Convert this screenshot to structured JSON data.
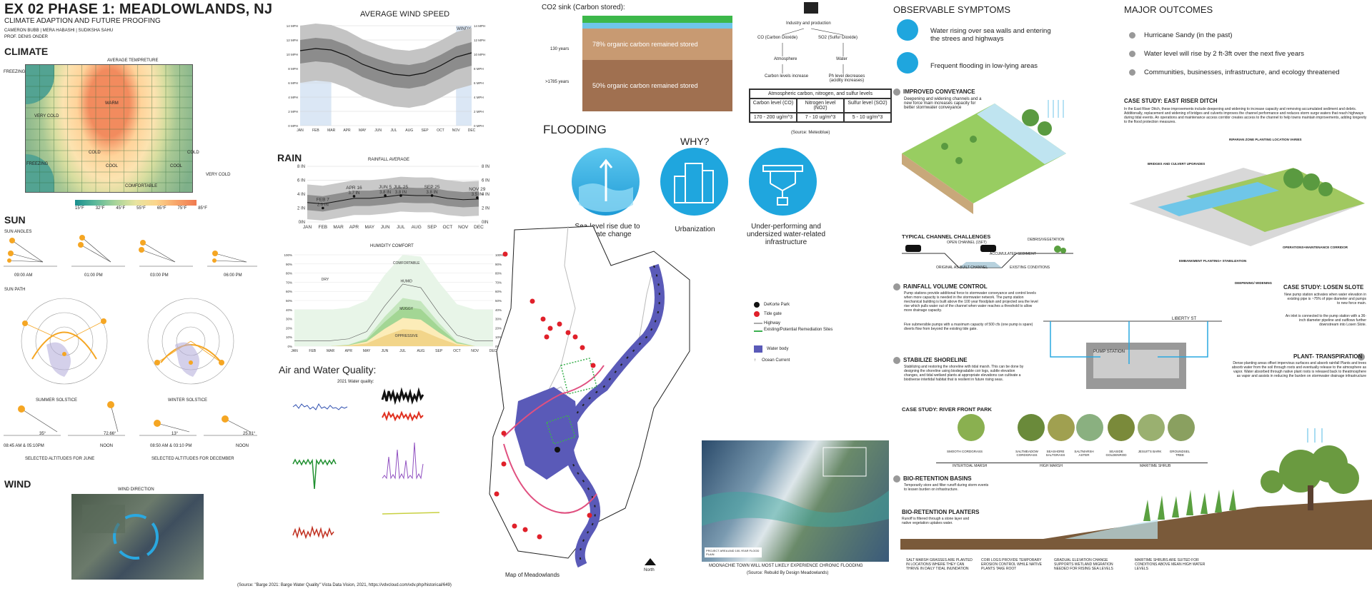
{
  "header": {
    "title": "EX 02 PHASE 1: MEADLOWLANDS, NJ",
    "subtitle": "CLIMATE ADAPTION AND FUTURE PROOFING",
    "authors": "CAMERON BUBB | MERA HABASHI | SUDIKSHA SAHU",
    "prof": "PROF. DENIS ONDER"
  },
  "climate": {
    "heading": "CLIMATE",
    "chart_title": "AVERAGE TEMPRETURE",
    "zones": [
      "FREEZING",
      "VERY COLD",
      "WARM",
      "COLD",
      "COOL",
      "COOL",
      "COLD",
      "FREEZING",
      "VERY COLD",
      "COMFORTABLE"
    ],
    "legend": [
      "15°F",
      "32°F",
      "45°F",
      "55°F",
      "65°F",
      "75°F",
      "85°F"
    ]
  },
  "sun": {
    "heading": "SUN",
    "angles_label": "SUN ANGLES",
    "times": [
      "09:00 AM",
      "01:00 PM",
      "03:00 PM",
      "06:00 PM"
    ],
    "path_label": "SUN PATH",
    "summer": "SUMMER SOLSTICE",
    "winter": "WINTER SOLSTICE",
    "alts": [
      "35°",
      "72.66°",
      "13°",
      "25.81°"
    ],
    "alt_times": [
      "08:45 AM & 05:10PM",
      "NOON",
      "08:50 AM & 03:10 PM",
      "NOON"
    ],
    "june": "SELECTED ALTITUDES FOR JUNE",
    "dec": "SELECTED ALTITUDES FOR DECEMBER"
  },
  "wind": {
    "heading": "WIND",
    "direction": "WIND DIRECTION"
  },
  "speed": {
    "title": "AVERAGE WIND SPEED",
    "windy": "WINDY"
  },
  "rain": {
    "heading": "RAIN",
    "title": "RAINFALL AVERAGE",
    "humidity": "HUMIDITY COMFORT",
    "hum_zones": [
      "DRY",
      "COMFORTABLE",
      "HUMID",
      "MUGGY",
      "OPPRESSIVE"
    ]
  },
  "chart_data": [
    {
      "type": "area",
      "title": "AVERAGE WIND SPEED",
      "categories": [
        "JAN",
        "FEB",
        "MAR",
        "APR",
        "MAY",
        "JUN",
        "JUL",
        "AUG",
        "SEP",
        "OCT",
        "NOV",
        "DEC"
      ],
      "series": [
        {
          "name": "average",
          "values": [
            10.5,
            10.8,
            10.6,
            9.8,
            8.6,
            7.8,
            7.2,
            7.0,
            7.4,
            8.4,
            9.6,
            10.2
          ]
        }
      ],
      "ylabel": "MPH",
      "ylim": [
        0,
        14
      ],
      "yticks": [
        "0 MPH",
        "2 MPH",
        "4 MPH",
        "6 MPH",
        "8 MPH",
        "10 MPH",
        "12 MPH",
        "14 MPH"
      ]
    },
    {
      "type": "area",
      "title": "RAINFALL AVERAGE",
      "categories": [
        "JAN",
        "FEB",
        "MAR",
        "APR",
        "MAY",
        "JUN",
        "JUL",
        "AUG",
        "SEP",
        "OCT",
        "NOV",
        "DEC"
      ],
      "series": [
        {
          "name": "average",
          "values": [
            2.8,
            2.6,
            3.0,
            3.4,
            3.4,
            3.6,
            3.9,
            3.8,
            3.8,
            3.4,
            3.2,
            3.3
          ]
        }
      ],
      "ylim": [
        0,
        8
      ],
      "yticks": [
        "0IN",
        "2 IN",
        "4 IN",
        "6 IN",
        "8 IN"
      ],
      "annotations": [
        {
          "label": "FEB 7",
          "value": "2.0 IN"
        },
        {
          "label": "APR 16",
          "value": "3.7 IN"
        },
        {
          "label": "JUN 5",
          "value": "3.8 IN"
        },
        {
          "label": "JUL 25",
          "value": "3.8 IN"
        },
        {
          "label": "SEP 25",
          "value": "3.8 IN"
        },
        {
          "label": "NOV 29",
          "value": "3.5 IN"
        }
      ]
    },
    {
      "type": "area",
      "title": "HUMIDITY COMFORT",
      "categories": [
        "JAN",
        "FEB",
        "MAR",
        "APR",
        "MAY",
        "JUN",
        "JUL",
        "AUG",
        "SEP",
        "OCT",
        "NOV",
        "DEC"
      ],
      "series": [
        {
          "name": "muggy",
          "values": [
            0,
            0,
            0,
            2,
            10,
            38,
            62,
            58,
            30,
            6,
            0,
            0
          ]
        }
      ],
      "ylim": [
        0,
        100
      ],
      "yticks": [
        "0%",
        "10%",
        "20%",
        "30%",
        "40%",
        "50%",
        "60%",
        "70%",
        "80%",
        "90%",
        "100%"
      ]
    }
  ],
  "months": [
    "JAN",
    "FEB",
    "MAR",
    "APR",
    "MAY",
    "JUN",
    "JUL",
    "AUG",
    "SEP",
    "OCT",
    "NOV",
    "DEC"
  ],
  "air": {
    "heading": "Air and Water Quality:",
    "sub": "2021 Water quality:",
    "source": "(Source: \"Barge 2021: Barge Water Quality\" Vista Data Vision, 2021, https://vdvcloud.com/vdv.php/historical/649)"
  },
  "co2": {
    "heading": "CO2 sink (Carbon stored):",
    "y1": "130 years",
    "y2": ">1785 years",
    "l1": "78% organic carbon remained stored",
    "l2": "50% organic carbon remained stored"
  },
  "industry": {
    "top": "Industry and production",
    "co": "CO (Carbon Dioxide)",
    "so2": "SO2 (Sulfur Dioxide)",
    "atm": "Atmosphere",
    "water": "Water",
    "carbon_inc": "Carbon levels increase",
    "ph": "Ph level decreases (acidity increases)",
    "table_title": "Atmospheric carbon, nitrogen, and sulfur levels",
    "cols": [
      "Carbon level (CO)",
      "Nitrogen level (NO2)",
      "Sulfur level (SO2)"
    ],
    "vals": [
      "170 - 200 ug/m^3",
      "7 - 10 ug/m^3",
      "5 - 10 ug/m^3"
    ],
    "source": "(Source: Meteoblue)"
  },
  "flooding": {
    "heading": "FLOODING",
    "why": "WHY?",
    "c1": "Sea-level rise due to climate change",
    "c2": "Urbanization",
    "c3": "Under-performing and undersized water-related infrastructure"
  },
  "map": {
    "legend": [
      "DeKorte Park",
      "Tide gate",
      "Highway",
      "Existing/Potential Remediation Sites",
      "Water body",
      "Ocean Current"
    ],
    "caption": "Map of Meadowlands",
    "north": "North"
  },
  "aerial": {
    "caption": "MOONACHIE TOWN WILL MOST LIKELY EXPERIENCE CHRONIC FLOODING",
    "source": "(Source: Rebuild By Design Meadowlands)",
    "legend": "PROJECT AREA AND 100-YEAR FLOOD PLAIN"
  },
  "symptoms": {
    "heading": "OBSERVABLE  SYMPTOMS",
    "s1": "Water rising over sea walls and entering the strees and highways",
    "s2": "Frequent flooding in low-lying areas"
  },
  "outcomes": {
    "heading": "MAJOR OUTCOMES",
    "items": [
      "Hurricane Sandy  (in the past)",
      "Water level will rise by 2 ft-3ft over the next five years",
      "Communities, businesses, infrastructure, and ecology threatened"
    ]
  },
  "strategies": {
    "conv_title": "IMPROVED CONVEYANCE",
    "conv_text": "Deepening and widening channels and a new force main increases capacity for better stormwater conveyance",
    "typical": "TYPICAL CHANNEL CHALLENGES",
    "ch_labels": [
      "OPEN CHANNEL (15FT)",
      "ACCUMULATED SEDIMENT",
      "DEBRIS/VEGETATION",
      "ORIGINAL AS-BUILT CHANNEL",
      "EXISTING CONDITIONS"
    ],
    "rain_title": "RAINFALL VOLUME CONTROL",
    "rain_text": "Pump stations provide additional force to stormwater conveyance and control levels when more capacity is needed in the stormwater network. The pump station mechanical building is built above the 100 year floodplain and projected sea the level rise which pulls water out of the channel when water reaches a threshold to allow more drainage capacity.",
    "rain_text2": "Five submersible pumps with a maximum capacity of 500 cfs (one pump is spare) diverts flow from beyond the existing tide gate.",
    "stab_title": "STABILIZE SHORELINE",
    "stab_text": "Stabilizing and restoring the shoreline with tidal marsh. This can be done by designing the shoreline using biodegradable coir logs, subtle elevation changes, and tidal wetland plants at appropriate elevations can cultivate a biodiverse intertidal habitat that is resilient in future rising seas.",
    "river": "CASE STUDY: RIVER FRONT PARK",
    "plants": [
      "SMOOTH CORDGRASS",
      "SALTMEADOW CORDGRASS",
      "SEASHORE SALTGRASS",
      "SALTMARSH ASTER",
      "SEASIDE GOLDENROD",
      "JESUIT'S BARK",
      "GROUNDSEL TREE"
    ],
    "zones": [
      "INTERTIDAL MARSH",
      "HIGH MARSH",
      "MARITIME SHRUB"
    ],
    "bio_title": "BIO-RETENTION BASINS",
    "bio_text": "Temporarily store and filter runoff during storm events to lessen burden on infrastructure.",
    "plant_title": "BIO-RETENTION PLANTERS",
    "plant_text": "Runoff is filtered through a stone layer and native vegetation uptakes water.",
    "notes": [
      "SALT MARSH GRASSES ARE PLANTED IN LOCATIONS WHERE THEY CAN THRIVE IN DAILY TIDAL INUNDATION",
      "COIR LOGS PROVIDE TEMPORARY EROSION CONTROL WHILE NATIVE PLANTS TAKE ROOT",
      "GRADUAL ELEVATION CHANGE SUPPORTS WETLAND MIGRATION NEEDED FOR RISING SEA LEVELS",
      "MARITIME SHRUBS ARE SUITED FOR CONDITIONS ABOVE MEAN HIGH WATER LEVELS"
    ]
  },
  "cases": {
    "east_title": "CASE STUDY: EAST RISER DITCH",
    "east_text": "In the East Riser Ditch, these improvements include deepening and widening to increase capacity and removing accumulated sediment and debris. Additionally, replacement and widening of bridges and culverts improves the channel performance and reduces storm surge waters that reach highways during tidal events. An operations and maintenance access corridor creates access to the channel to help towns maintain improvements, adding longevity to the flood protection measures.",
    "labels": [
      "RIPARIAN ZONE PLANTING LOCATION VARIES",
      "BRIDGES AND CULVERT UPGRADES",
      "OPERATIONS+MAINTENANCE CORRIDOR",
      "EMBANKMENT PLANTING+ STABILIZATION",
      "DEEPENING/ WIDENING"
    ],
    "losen_title": "CASE STUDY: LOSEN SLOTE",
    "losen_text": "New pump station activates when water elevation in existing pipe is ~75% of pipe diameter and pumps to new force main.",
    "losen_text2": "An inlet is connected to the pump station with a 36-inch diameter pipeline and outflows further downstream into Losen Slote.",
    "liberty": "LIBERTY ST",
    "pump": "PUMP STATION",
    "transp_title": "PLANT- TRANSPIRATION",
    "transp_text": "Dense planting areas offset impervious surfaces and absorb rainfall Plants and trees absorb water from the soil through roots and eventually release to the atmosphere as vapor. Water absorbed through native plant roots is released back to theatmosphere as vapor and assists in reducing the burden on stormwater drainage infrastructure"
  },
  "colors": {
    "accent": "#29a8e0",
    "water": "#5050a8",
    "grid": "#3a8c4e",
    "warm": "#f08a5d"
  }
}
